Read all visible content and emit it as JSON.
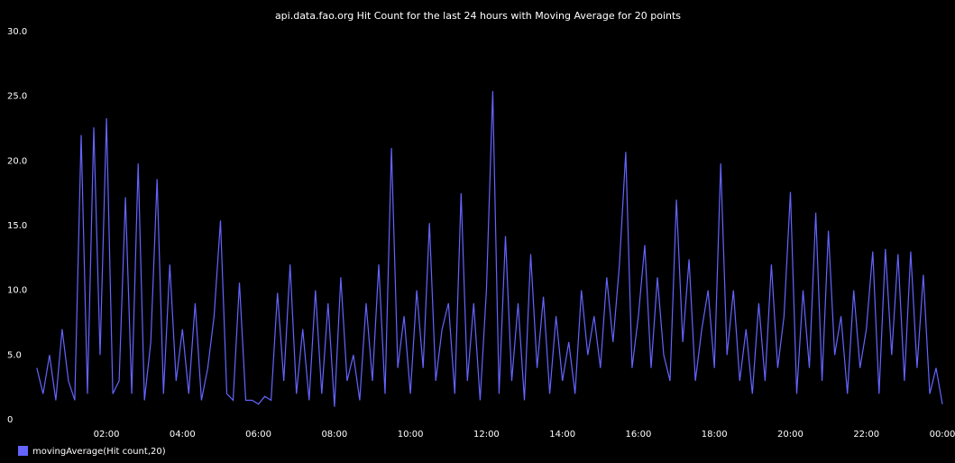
{
  "chart_data": {
    "type": "line",
    "title": "api.data.fao.org Hit Count for the last 24 hours with Moving Average for 20 points",
    "x": [
      10,
      20,
      30,
      40,
      50,
      60,
      70,
      80,
      90,
      100,
      110,
      120,
      130,
      140,
      150,
      160,
      170,
      180,
      190,
      200,
      210,
      220,
      230,
      240,
      250,
      260,
      270,
      280,
      290,
      300,
      310,
      320,
      330,
      340,
      350,
      360,
      370,
      380,
      390,
      400,
      410,
      420,
      430,
      440,
      450,
      460,
      470,
      480,
      490,
      500,
      510,
      520,
      530,
      540,
      550,
      560,
      570,
      580,
      590,
      600,
      610,
      620,
      630,
      640,
      650,
      660,
      670,
      680,
      690,
      700,
      710,
      720,
      730,
      740,
      750,
      760,
      770,
      780,
      790,
      800,
      810,
      820,
      830,
      840,
      850,
      860,
      870,
      880,
      890,
      900,
      910,
      920,
      930,
      940,
      950,
      960,
      970,
      980,
      990,
      1000,
      1010,
      1020,
      1030,
      1040,
      1050,
      1060,
      1070,
      1080,
      1090,
      1100,
      1110,
      1120,
      1130,
      1140,
      1150,
      1160,
      1170,
      1180,
      1190,
      1200,
      1210,
      1220,
      1230,
      1240,
      1250,
      1260,
      1270,
      1280,
      1290,
      1300,
      1310,
      1320,
      1330,
      1340,
      1350,
      1360,
      1370,
      1380,
      1390,
      1400,
      1410,
      1420,
      1430,
      1440
    ],
    "series": [
      {
        "name": "movingAverage(Hit count,20)",
        "color": "#6464ff",
        "values": [
          4,
          2,
          5,
          1.5,
          7,
          3,
          1.5,
          22,
          2,
          22.6,
          5,
          23.3,
          2,
          3,
          17.2,
          2,
          19.8,
          1.5,
          6,
          18.6,
          2,
          12,
          3,
          7,
          2,
          9,
          1.5,
          4,
          8,
          15.4,
          2,
          1.5,
          10.6,
          1.5,
          1.5,
          1.2,
          1.8,
          1.5,
          9.8,
          3,
          12,
          2,
          7,
          1.5,
          10,
          2,
          9,
          1,
          11,
          3,
          5,
          1.5,
          9,
          3,
          12,
          2,
          21,
          4,
          8,
          2,
          10,
          4,
          15.2,
          3,
          7,
          9,
          2,
          17.5,
          3,
          9,
          1.5,
          10,
          25.4,
          2,
          14.2,
          3,
          9,
          1.5,
          12.8,
          4,
          9.5,
          2,
          8,
          3,
          6,
          2,
          10,
          5,
          8,
          4,
          11,
          6,
          12,
          20.7,
          4,
          8,
          13.5,
          4,
          11,
          5,
          3,
          17,
          6,
          12.4,
          3,
          7,
          10,
          4,
          19.8,
          5,
          10,
          3,
          7,
          2,
          9,
          3,
          12,
          4,
          8,
          17.6,
          2,
          10,
          4,
          16,
          3,
          14.6,
          5,
          8,
          2,
          10,
          4,
          7,
          13,
          2,
          13.2,
          5,
          12.8,
          3,
          13,
          4,
          11.2,
          2,
          4,
          1.2
        ]
      }
    ],
    "xlim": [
      6,
      1440
    ],
    "xticks": [
      {
        "value": 120,
        "label": "02:00"
      },
      {
        "value": 240,
        "label": "04:00"
      },
      {
        "value": 360,
        "label": "06:00"
      },
      {
        "value": 480,
        "label": "08:00"
      },
      {
        "value": 600,
        "label": "10:00"
      },
      {
        "value": 720,
        "label": "12:00"
      },
      {
        "value": 840,
        "label": "14:00"
      },
      {
        "value": 960,
        "label": "16:00"
      },
      {
        "value": 1080,
        "label": "18:00"
      },
      {
        "value": 1200,
        "label": "20:00"
      },
      {
        "value": 1320,
        "label": "22:00"
      },
      {
        "value": 1440,
        "label": "00:00"
      }
    ],
    "ylim": [
      0,
      30
    ],
    "yticks": [
      0,
      {
        "value": 5,
        "label": "5.0"
      },
      {
        "value": 10,
        "label": "10.0"
      },
      {
        "value": 15,
        "label": "15.0"
      },
      {
        "value": 20,
        "label": "20.0"
      },
      {
        "value": 25,
        "label": "25.0"
      },
      {
        "value": 30,
        "label": "30.0"
      }
    ],
    "grid": false,
    "legend": "bottom-left"
  }
}
